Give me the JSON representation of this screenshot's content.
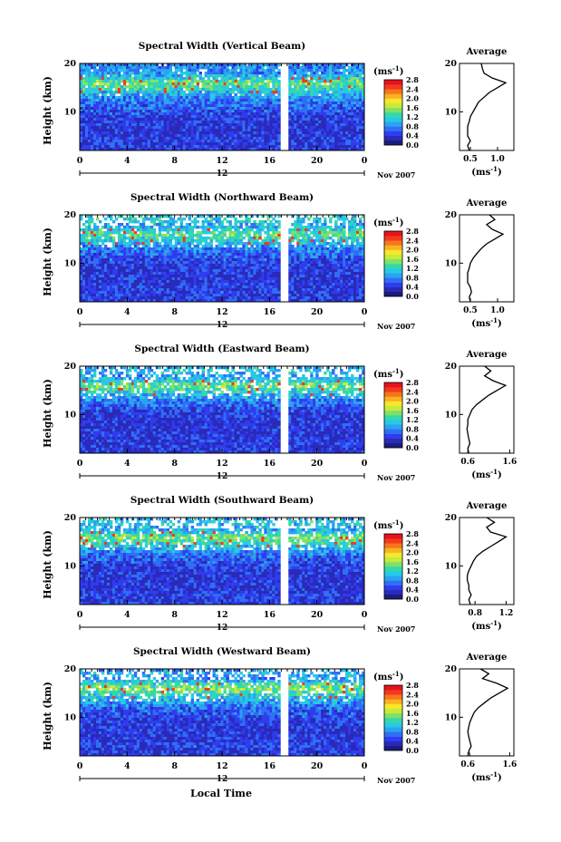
{
  "page": {
    "xlabel_bottom": "Local Time"
  },
  "colorbar": {
    "unit": "(ms",
    "unit_exp": "-1",
    "unit_close": ")",
    "ticks": [
      "0.0",
      "0.4",
      "0.8",
      "1.2",
      "1.6",
      "2.0",
      "2.4",
      "2.8"
    ],
    "colors": [
      "#1b1b7a",
      "#2a2ab8",
      "#2f3cf0",
      "#2f6ff5",
      "#2aa3f0",
      "#27c9e6",
      "#33d9a8",
      "#7fe06a",
      "#c7ea3c",
      "#f6e82a",
      "#f9b320",
      "#f7761c",
      "#f23a1c",
      "#e8121c"
    ]
  },
  "chart_data": [
    {
      "type": "heatmap",
      "title": "Spectral Width (Vertical Beam)",
      "ylabel": "Height (km)",
      "xlim": [
        0,
        24
      ],
      "ylim": [
        2,
        20
      ],
      "x_ticks": [
        "0",
        "4",
        "8",
        "12",
        "16",
        "20",
        "0"
      ],
      "y_ticks": [
        "20",
        "10"
      ],
      "date_center": "12",
      "date_label": "Nov 2007",
      "gap_hours": [
        17.0,
        17.5
      ],
      "profile": {
        "title": "Average",
        "xlabel": "(ms",
        "x_ticks": [
          "0.5",
          "1.0"
        ],
        "xlim": [
          0.3,
          1.3
        ],
        "y_ticks": [
          "20",
          "10"
        ],
        "height_km": [
          20,
          19,
          18,
          17,
          16,
          15,
          14,
          13,
          12,
          11,
          10,
          9,
          8,
          7,
          6,
          5,
          4,
          3,
          2
        ],
        "width_ms": [
          0.7,
          0.72,
          0.75,
          0.9,
          1.15,
          1.0,
          0.85,
          0.75,
          0.65,
          0.6,
          0.55,
          0.5,
          0.48,
          0.45,
          0.45,
          0.45,
          0.5,
          0.45,
          0.48
        ]
      }
    },
    {
      "type": "heatmap",
      "title": "Spectral Width (Northward Beam)",
      "ylabel": "Height (km)",
      "xlim": [
        0,
        24
      ],
      "ylim": [
        2,
        20
      ],
      "x_ticks": [
        "0",
        "4",
        "8",
        "12",
        "16",
        "20",
        "0"
      ],
      "y_ticks": [
        "20",
        "10"
      ],
      "date_center": "12",
      "date_label": "Nov 2007",
      "gap_hours": [
        17.0,
        17.5
      ],
      "profile": {
        "title": "Average",
        "xlabel": "(ms",
        "x_ticks": [
          "0.5",
          "1.0"
        ],
        "xlim": [
          0.3,
          1.3
        ],
        "y_ticks": [
          "20",
          "10"
        ],
        "height_km": [
          20,
          19,
          18,
          17,
          16,
          15,
          14,
          13,
          12,
          11,
          10,
          9,
          8,
          7,
          6,
          5,
          4,
          3,
          2
        ],
        "width_ms": [
          0.85,
          0.95,
          0.8,
          0.9,
          1.1,
          0.95,
          0.8,
          0.7,
          0.62,
          0.55,
          0.5,
          0.48,
          0.45,
          0.45,
          0.45,
          0.5,
          0.52,
          0.48,
          0.5
        ]
      }
    },
    {
      "type": "heatmap",
      "title": "Spectral Width (Eastward Beam)",
      "ylabel": "Height (km)",
      "xlim": [
        0,
        24
      ],
      "ylim": [
        2,
        20
      ],
      "x_ticks": [
        "0",
        "4",
        "8",
        "12",
        "16",
        "20",
        "0"
      ],
      "y_ticks": [
        "20",
        "10"
      ],
      "date_center": "12",
      "date_label": "Nov 2007",
      "gap_hours": [
        17.0,
        17.5
      ],
      "profile": {
        "title": "Average",
        "xlabel": "(ms",
        "x_ticks": [
          "0.6",
          "1.6"
        ],
        "xlim": [
          0.4,
          1.7
        ],
        "y_ticks": [
          "20",
          "10"
        ],
        "height_km": [
          20,
          19,
          18,
          17,
          16,
          15,
          14,
          13,
          12,
          11,
          10,
          9,
          8,
          7,
          6,
          5,
          4,
          3,
          2
        ],
        "width_ms": [
          1.0,
          1.15,
          1.0,
          1.2,
          1.5,
          1.3,
          1.1,
          0.95,
          0.8,
          0.7,
          0.65,
          0.6,
          0.6,
          0.58,
          0.6,
          0.62,
          0.65,
          0.6,
          0.62
        ]
      }
    },
    {
      "type": "heatmap",
      "title": "Spectral Width (Southward Beam)",
      "ylabel": "Height (km)",
      "xlim": [
        0,
        24
      ],
      "ylim": [
        2,
        20
      ],
      "x_ticks": [
        "0",
        "4",
        "8",
        "12",
        "16",
        "20",
        "0"
      ],
      "y_ticks": [
        "20",
        "10"
      ],
      "date_center": "12",
      "date_label": "Nov 2007",
      "gap_hours": [
        17.0,
        17.5
      ],
      "profile": {
        "title": "Average",
        "xlabel": "(ms",
        "x_ticks": [
          "0.8",
          "1.2"
        ],
        "xlim": [
          0.6,
          1.3
        ],
        "y_ticks": [
          "20",
          "10"
        ],
        "height_km": [
          20,
          19,
          18,
          17,
          16,
          15,
          14,
          13,
          12,
          11,
          10,
          9,
          8,
          7,
          6,
          5,
          4,
          3,
          2
        ],
        "width_ms": [
          0.95,
          1.05,
          0.95,
          1.0,
          1.2,
          1.1,
          1.0,
          0.9,
          0.82,
          0.78,
          0.75,
          0.72,
          0.7,
          0.7,
          0.72,
          0.72,
          0.75,
          0.72,
          0.74
        ]
      }
    },
    {
      "type": "heatmap",
      "title": "Spectral Width (Westward Beam)",
      "ylabel": "Height (km)",
      "xlim": [
        0,
        24
      ],
      "ylim": [
        2,
        20
      ],
      "x_ticks": [
        "0",
        "4",
        "8",
        "12",
        "16",
        "20",
        "0"
      ],
      "y_ticks": [
        "20",
        "10"
      ],
      "date_center": "12",
      "date_label": "Nov 2007",
      "gap_hours": [
        17.0,
        17.5
      ],
      "profile": {
        "title": "Average",
        "xlabel": "(ms",
        "x_ticks": [
          "0.6",
          "1.6"
        ],
        "xlim": [
          0.4,
          1.7
        ],
        "y_ticks": [
          "20",
          "10"
        ],
        "height_km": [
          20,
          19,
          18,
          17,
          16,
          15,
          14,
          13,
          12,
          11,
          10,
          9,
          8,
          7,
          6,
          5,
          4,
          3,
          2
        ],
        "width_ms": [
          0.9,
          1.1,
          0.95,
          1.3,
          1.55,
          1.35,
          1.15,
          1.0,
          0.85,
          0.75,
          0.7,
          0.65,
          0.62,
          0.6,
          0.62,
          0.65,
          0.68,
          0.62,
          0.65
        ]
      }
    }
  ]
}
